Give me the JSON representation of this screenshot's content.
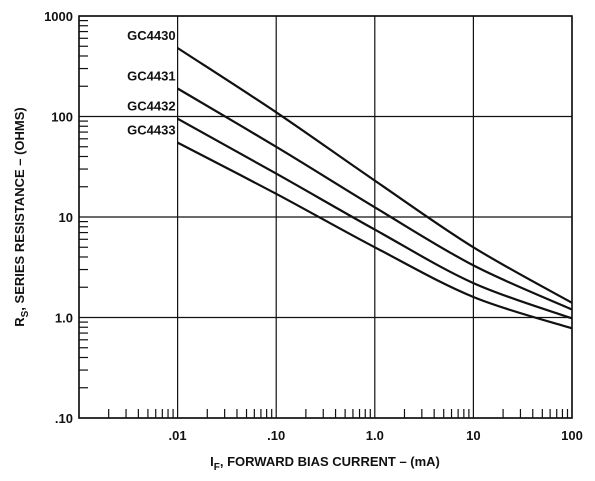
{
  "chart_data": {
    "type": "line",
    "x_scale": "log",
    "y_scale": "log",
    "xlim": [
      0.001,
      100
    ],
    "ylim": [
      0.1,
      1000
    ],
    "grid": true,
    "legend": "labels at curve start",
    "ylabel": {
      "main": "R",
      "sub": "S",
      "rest": ", SERIES RESISTANCE – (OHMS)"
    },
    "xlabel": {
      "main": "I",
      "sub": "F",
      "rest": ", FORWARD BIAS CURRENT – (mA)"
    },
    "x_tick_labels": [
      {
        "value": 0.01,
        "label": ".01"
      },
      {
        "value": 0.1,
        "label": ".10"
      },
      {
        "value": 1,
        "label": "1.0"
      },
      {
        "value": 10,
        "label": "10"
      },
      {
        "value": 100,
        "label": "100"
      }
    ],
    "y_tick_labels": [
      {
        "value": 0.1,
        "label": ".10"
      },
      {
        "value": 1,
        "label": "1.0"
      },
      {
        "value": 10,
        "label": "10"
      },
      {
        "value": 100,
        "label": "100"
      },
      {
        "value": 1000,
        "label": "1000"
      }
    ],
    "series": [
      {
        "name": "GC4430",
        "x": [
          0.01,
          0.1,
          1,
          10,
          100
        ],
        "y": [
          480,
          110,
          23,
          5.0,
          1.4
        ]
      },
      {
        "name": "GC4431",
        "x": [
          0.01,
          0.1,
          1,
          10,
          100
        ],
        "y": [
          190,
          50,
          12.5,
          3.3,
          1.2
        ]
      },
      {
        "name": "GC4432",
        "x": [
          0.01,
          0.1,
          1,
          10,
          100
        ],
        "y": [
          95,
          27,
          7.5,
          2.2,
          0.98
        ]
      },
      {
        "name": "GC4433",
        "x": [
          0.01,
          0.1,
          1,
          10,
          100
        ],
        "y": [
          55,
          17,
          5.0,
          1.6,
          0.78
        ]
      }
    ]
  }
}
